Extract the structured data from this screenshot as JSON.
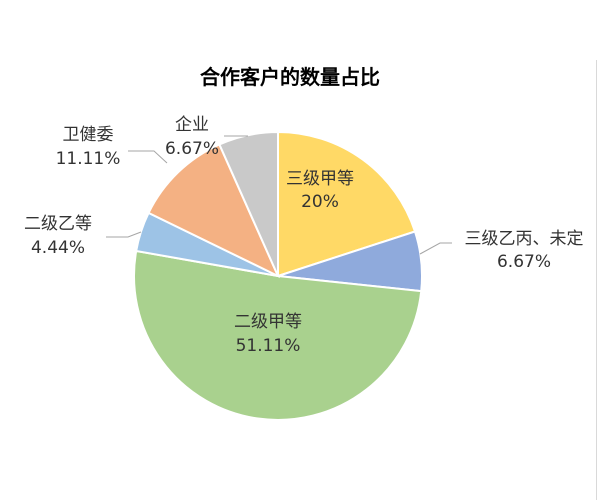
{
  "chart_data": {
    "type": "pie",
    "title": "合作客户的数量占比",
    "slices": [
      {
        "name": "三级甲等",
        "value": 20,
        "label_value": "20%",
        "color": "#ffd966"
      },
      {
        "name": "三级乙丙、未定",
        "value": 6.67,
        "label_value": "6.67%",
        "color": "#8faadc"
      },
      {
        "name": "二级甲等",
        "value": 51.11,
        "label_value": "51.11%",
        "color": "#a9d18e"
      },
      {
        "name": "二级乙等",
        "value": 4.44,
        "label_value": "4.44%",
        "color": "#9dc3e6"
      },
      {
        "name": "卫健委",
        "value": 11.11,
        "label_value": "11.11%",
        "color": "#f4b183"
      },
      {
        "name": "企业",
        "value": 6.67,
        "label_value": "6.67%",
        "color": "#c9c9c9"
      }
    ],
    "start_angle_deg": 0,
    "direction": "clockwise"
  }
}
